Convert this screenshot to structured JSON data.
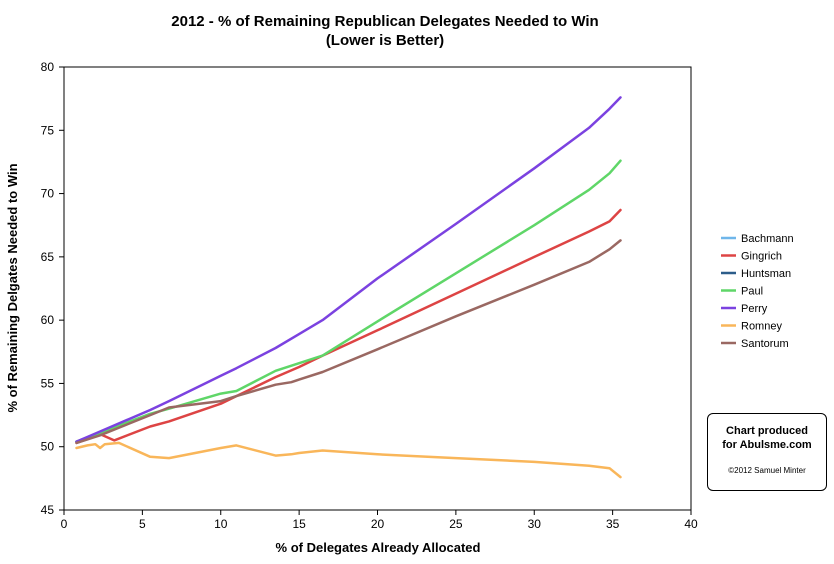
{
  "chart_data": {
    "type": "line",
    "title": "2012 - % of Remaining Republican Delegates Needed to Win",
    "subtitle": "(Lower is Better)",
    "xlabel": "% of Delegates Already Allocated",
    "ylabel": "% of Remaining Delgates Needed to Win",
    "xlim": [
      0,
      40
    ],
    "ylim": [
      45,
      80
    ],
    "xticks": [
      "0",
      "5",
      "10",
      "15",
      "20",
      "25",
      "30",
      "35",
      "40"
    ],
    "yticks": [
      "45",
      "50",
      "55",
      "60",
      "65",
      "70",
      "75",
      "80"
    ],
    "grid": false,
    "legend_position": "right",
    "series": [
      {
        "name": "Bachmann",
        "color": "#6fb6ea",
        "points": [
          [
            0.8,
            50.4
          ],
          [
            1.2,
            50.6
          ]
        ]
      },
      {
        "name": "Gingrich",
        "color": "#dd4444",
        "points": [
          [
            0.8,
            50.3
          ],
          [
            2.3,
            51.0
          ],
          [
            3.2,
            50.5
          ],
          [
            5.5,
            51.6
          ],
          [
            6.7,
            52.0
          ],
          [
            10.0,
            53.4
          ],
          [
            11.0,
            54.0
          ],
          [
            13.5,
            55.5
          ],
          [
            15.0,
            56.3
          ],
          [
            16.5,
            57.2
          ],
          [
            20.0,
            59.2
          ],
          [
            25.0,
            62.1
          ],
          [
            30.0,
            65.0
          ],
          [
            33.5,
            67.0
          ],
          [
            34.8,
            67.8
          ],
          [
            35.5,
            68.7
          ]
        ]
      },
      {
        "name": "Huntsman",
        "color": "#2c5d8a",
        "points": [
          [
            0.8,
            50.4
          ],
          [
            2.3,
            51.1
          ]
        ]
      },
      {
        "name": "Paul",
        "color": "#5fd668",
        "points": [
          [
            0.8,
            50.4
          ],
          [
            2.3,
            51.1
          ],
          [
            5.5,
            52.6
          ],
          [
            6.7,
            53.0
          ],
          [
            10.0,
            54.2
          ],
          [
            11.0,
            54.4
          ],
          [
            13.5,
            56.0
          ],
          [
            15.0,
            56.6
          ],
          [
            16.5,
            57.2
          ],
          [
            20.0,
            59.9
          ],
          [
            25.0,
            63.7
          ],
          [
            30.0,
            67.5
          ],
          [
            33.5,
            70.3
          ],
          [
            34.8,
            71.6
          ],
          [
            35.5,
            72.6
          ]
        ]
      },
      {
        "name": "Perry",
        "color": "#7b42e0",
        "points": [
          [
            0.8,
            50.4
          ],
          [
            2.3,
            51.2
          ],
          [
            5.5,
            52.9
          ],
          [
            6.7,
            53.6
          ],
          [
            10.0,
            55.6
          ],
          [
            11.0,
            56.2
          ],
          [
            13.5,
            57.8
          ],
          [
            15.0,
            58.9
          ],
          [
            16.5,
            60.0
          ],
          [
            20.0,
            63.3
          ],
          [
            25.0,
            67.6
          ],
          [
            30.0,
            72.0
          ],
          [
            33.5,
            75.2
          ],
          [
            34.8,
            76.7
          ],
          [
            35.5,
            77.6
          ]
        ]
      },
      {
        "name": "Romney",
        "color": "#f9b65a",
        "points": [
          [
            0.8,
            49.9
          ],
          [
            1.5,
            50.1
          ],
          [
            2.0,
            50.2
          ],
          [
            2.3,
            49.9
          ],
          [
            2.6,
            50.2
          ],
          [
            3.5,
            50.3
          ],
          [
            5.5,
            49.2
          ],
          [
            6.7,
            49.1
          ],
          [
            10.0,
            49.9
          ],
          [
            11.0,
            50.1
          ],
          [
            13.5,
            49.3
          ],
          [
            14.5,
            49.4
          ],
          [
            15.0,
            49.5
          ],
          [
            16.5,
            49.7
          ],
          [
            20.0,
            49.4
          ],
          [
            25.0,
            49.1
          ],
          [
            30.0,
            48.8
          ],
          [
            33.5,
            48.5
          ],
          [
            34.8,
            48.3
          ],
          [
            35.5,
            47.6
          ]
        ]
      },
      {
        "name": "Santorum",
        "color": "#9a6862",
        "points": [
          [
            0.8,
            50.3
          ],
          [
            2.3,
            50.9
          ],
          [
            5.5,
            52.5
          ],
          [
            6.7,
            53.1
          ],
          [
            10.0,
            53.6
          ],
          [
            11.0,
            54.0
          ],
          [
            13.5,
            54.9
          ],
          [
            14.5,
            55.1
          ],
          [
            15.0,
            55.3
          ],
          [
            16.5,
            55.9
          ],
          [
            20.0,
            57.7
          ],
          [
            25.0,
            60.3
          ],
          [
            30.0,
            62.8
          ],
          [
            33.5,
            64.6
          ],
          [
            34.8,
            65.6
          ],
          [
            35.5,
            66.3
          ]
        ]
      }
    ]
  },
  "credit": {
    "line1": "Chart produced",
    "line2": "for Abulsme.com",
    "copyright": "©2012 Samuel Minter"
  }
}
